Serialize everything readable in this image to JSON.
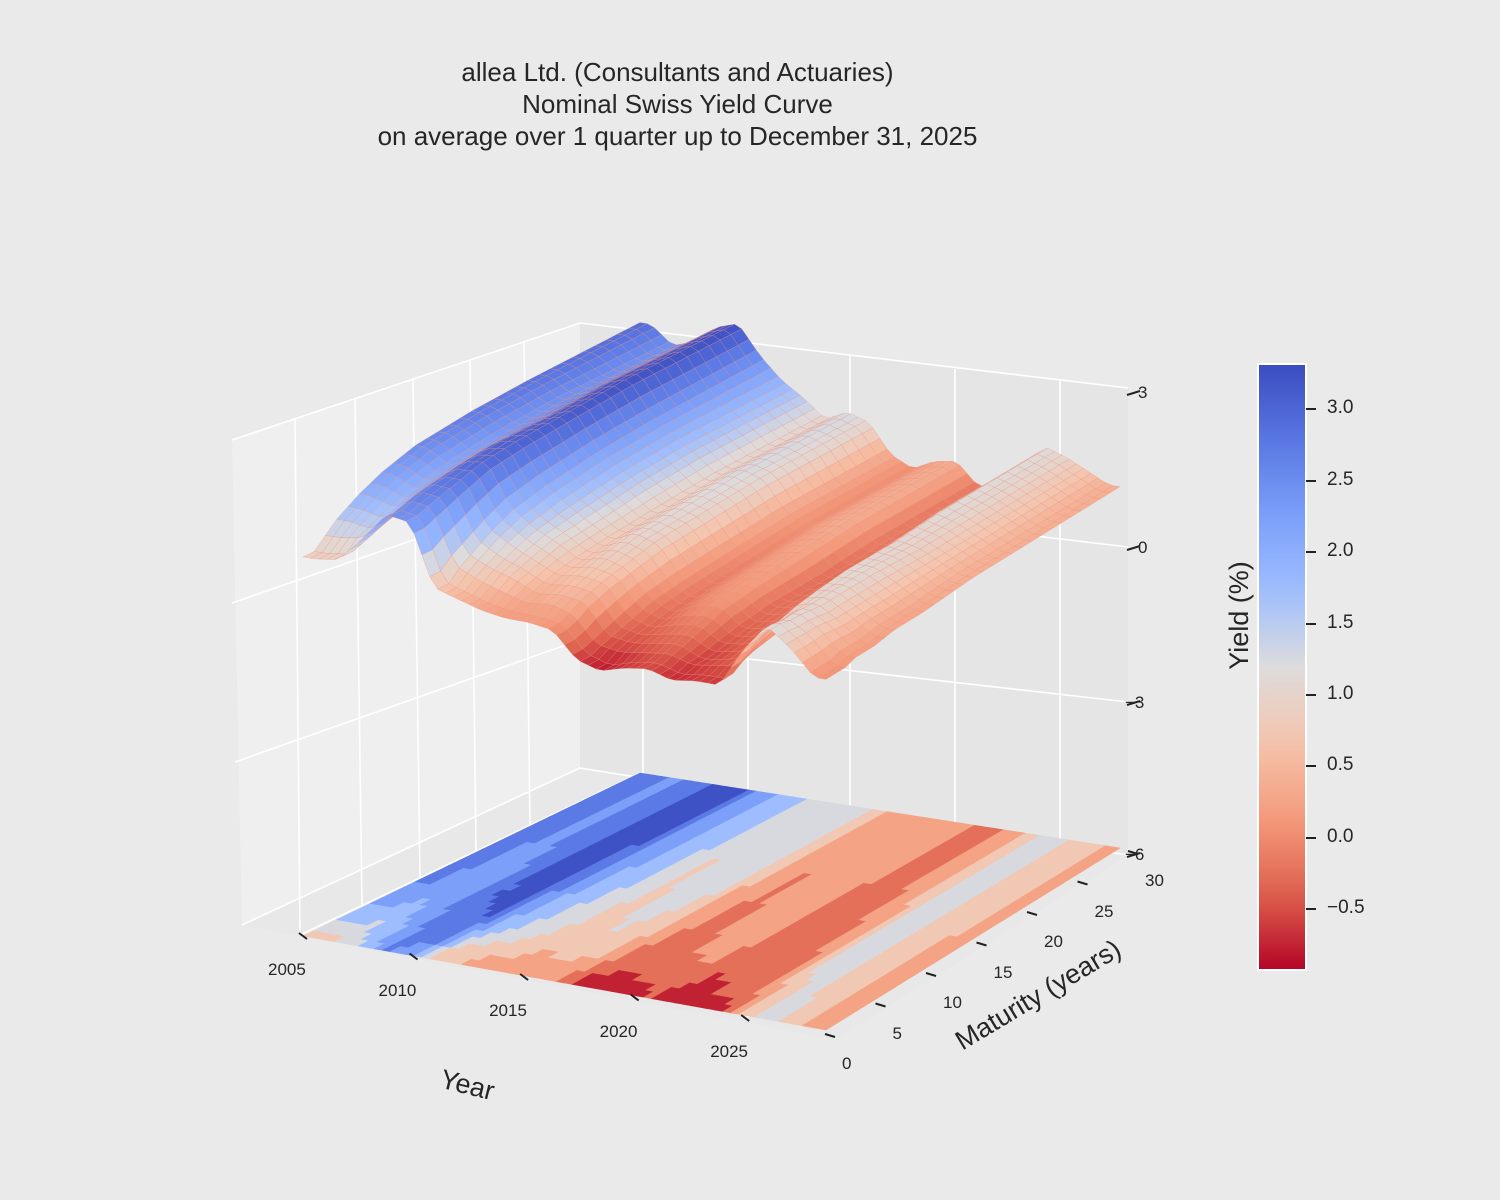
{
  "chart_data": {
    "type": "surface3d",
    "title": [
      "allea Ltd. (Consultants and Actuaries)",
      "Nominal Swiss Yield Curve",
      "on average over 1 quarter up to December 31, 2025"
    ],
    "xlabel": "Year",
    "ylabel": "Maturity (years)",
    "zlabel": "Yield (%)",
    "x_ticks": [
      "2005",
      "2010",
      "2015",
      "2020",
      "2025"
    ],
    "y_ticks": [
      "0",
      "5",
      "10",
      "15",
      "20",
      "25",
      "30"
    ],
    "z_ticks": [
      "3",
      "0",
      "−3",
      "−6"
    ],
    "zlim": [
      -6,
      3
    ],
    "colormap": "coolwarm_r",
    "colorbar": {
      "label": "Yield (%)",
      "range": [
        -0.92,
        3.32
      ],
      "ticks": [
        "3.0",
        "2.5",
        "2.0",
        "1.5",
        "1.0",
        "0.5",
        "0.0",
        "−0.5"
      ]
    },
    "floor_contour": true,
    "years": [
      2004,
      2005,
      2006,
      2007,
      2008,
      2009,
      2010,
      2011,
      2012,
      2013,
      2014,
      2015,
      2016,
      2017,
      2018,
      2019,
      2020,
      2021,
      2022,
      2023,
      2024,
      2025
    ],
    "maturities": [
      1,
      2,
      3,
      5,
      7,
      10,
      15,
      20,
      30
    ],
    "yields": [
      [
        0.9,
        1.2,
        1.5,
        1.9,
        2.2,
        2.5,
        2.7,
        2.8,
        2.9
      ],
      [
        1.0,
        1.3,
        1.4,
        1.7,
        1.9,
        2.1,
        2.3,
        2.4,
        2.4
      ],
      [
        1.7,
        1.8,
        1.9,
        2.1,
        2.3,
        2.4,
        2.5,
        2.6,
        2.6
      ],
      [
        2.5,
        2.6,
        2.7,
        2.8,
        2.9,
        3.0,
        3.0,
        3.1,
        3.1
      ],
      [
        2.4,
        2.5,
        2.6,
        2.8,
        3.0,
        3.1,
        3.2,
        3.3,
        3.3
      ],
      [
        0.7,
        1.0,
        1.2,
        1.6,
        1.9,
        2.1,
        2.3,
        2.4,
        2.5
      ],
      [
        0.5,
        0.7,
        0.9,
        1.2,
        1.4,
        1.6,
        1.8,
        1.9,
        1.9
      ],
      [
        0.3,
        0.5,
        0.7,
        0.9,
        1.1,
        1.2,
        1.4,
        1.5,
        1.5
      ],
      [
        0.2,
        0.3,
        0.4,
        0.6,
        0.7,
        0.8,
        0.9,
        1.0,
        1.0
      ],
      [
        0.2,
        0.4,
        0.5,
        0.7,
        0.9,
        1.1,
        1.2,
        1.3,
        1.3
      ],
      [
        0.1,
        0.2,
        0.4,
        0.6,
        0.7,
        0.9,
        1.0,
        1.1,
        1.1
      ],
      [
        -0.6,
        -0.5,
        -0.4,
        -0.2,
        0.0,
        0.1,
        0.2,
        0.3,
        0.3
      ],
      [
        -0.8,
        -0.6,
        -0.5,
        -0.4,
        -0.3,
        -0.2,
        -0.1,
        0.0,
        0.0
      ],
      [
        -0.6,
        -0.5,
        -0.4,
        -0.2,
        0.0,
        0.1,
        0.2,
        0.3,
        0.3
      ],
      [
        -0.5,
        -0.4,
        -0.3,
        -0.1,
        0.1,
        0.2,
        0.3,
        0.4,
        0.4
      ],
      [
        -0.7,
        -0.6,
        -0.6,
        -0.5,
        -0.4,
        -0.3,
        -0.3,
        -0.2,
        -0.2
      ],
      [
        -0.6,
        -0.5,
        -0.5,
        -0.4,
        -0.3,
        -0.2,
        -0.2,
        -0.1,
        -0.1
      ],
      [
        -0.6,
        -0.4,
        -0.3,
        -0.2,
        -0.1,
        0.0,
        0.1,
        0.2,
        0.2
      ],
      [
        0.5,
        0.6,
        0.7,
        0.9,
        1.0,
        1.1,
        1.1,
        1.2,
        1.2
      ],
      [
        1.3,
        1.2,
        1.2,
        1.1,
        1.1,
        1.1,
        1.0,
        1.0,
        1.0
      ],
      [
        0.8,
        0.8,
        0.8,
        0.7,
        0.7,
        0.7,
        0.7,
        0.7,
        0.7
      ],
      [
        0.1,
        0.1,
        0.2,
        0.2,
        0.3,
        0.3,
        0.4,
        0.4,
        0.4
      ]
    ]
  }
}
